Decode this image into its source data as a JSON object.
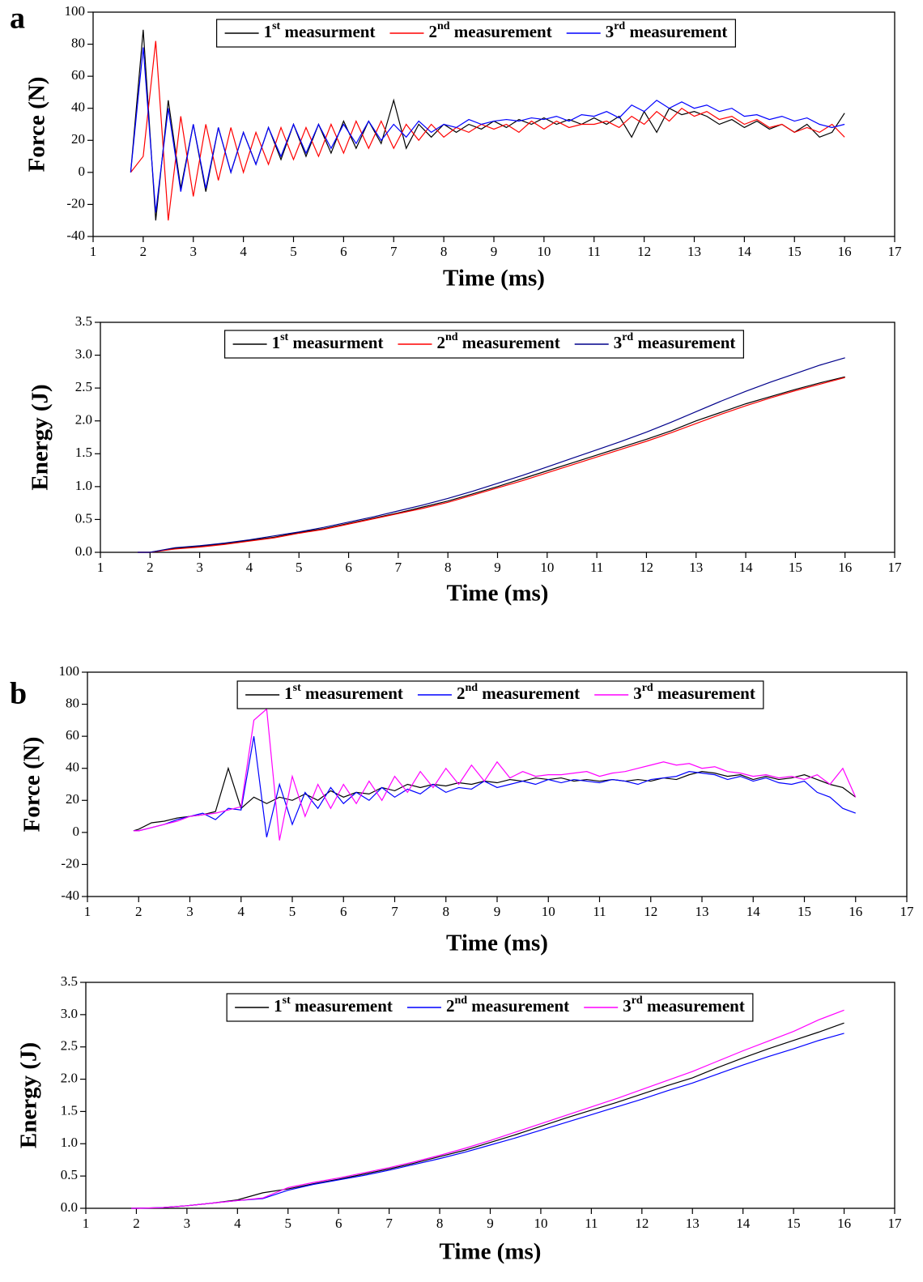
{
  "chart_data": [
    {
      "type": "line",
      "panel_label": "a",
      "x_label": "Time (ms)",
      "y_label": "Force (N)",
      "legend": "top",
      "grid": false,
      "xlim": [
        1,
        17
      ],
      "xticks": [
        1,
        2,
        3,
        4,
        5,
        6,
        7,
        8,
        9,
        10,
        11,
        12,
        13,
        14,
        15,
        16,
        17
      ],
      "ylim": [
        -40,
        100
      ],
      "yticks": [
        -40,
        -20,
        0,
        20,
        40,
        60,
        80,
        100
      ],
      "x": [
        1.75,
        2,
        2.25,
        2.5,
        2.75,
        3,
        3.25,
        3.5,
        3.75,
        4,
        4.25,
        4.5,
        4.75,
        5,
        5.25,
        5.5,
        5.75,
        6,
        6.25,
        6.5,
        6.75,
        7,
        7.25,
        7.5,
        7.75,
        8,
        8.25,
        8.5,
        8.75,
        9,
        9.25,
        9.5,
        9.75,
        10,
        10.25,
        10.5,
        10.75,
        11,
        11.25,
        11.5,
        11.75,
        12,
        12.25,
        12.5,
        12.75,
        13,
        13.25,
        13.5,
        13.75,
        14,
        14.25,
        14.5,
        14.75,
        15,
        15.25,
        15.5,
        15.75,
        16
      ],
      "series": [
        {
          "name": "1st measurment",
          "color": "#000000",
          "values": [
            0,
            89,
            -30,
            45,
            -10,
            30,
            -12,
            28,
            0,
            25,
            5,
            28,
            8,
            30,
            10,
            30,
            12,
            32,
            15,
            32,
            18,
            45,
            15,
            30,
            22,
            30,
            25,
            30,
            27,
            32,
            28,
            33,
            30,
            34,
            30,
            33,
            30,
            34,
            30,
            35,
            22,
            38,
            25,
            40,
            36,
            38,
            35,
            30,
            33,
            28,
            32,
            27,
            30,
            25,
            30,
            22,
            25,
            37
          ]
        },
        {
          "name": "2nd measurement",
          "color": "#ff0000",
          "values": [
            0,
            10,
            82,
            -30,
            35,
            -15,
            30,
            -5,
            28,
            0,
            25,
            5,
            28,
            8,
            28,
            10,
            30,
            12,
            32,
            15,
            32,
            15,
            30,
            20,
            30,
            22,
            28,
            25,
            30,
            27,
            30,
            25,
            32,
            27,
            32,
            28,
            30,
            30,
            32,
            28,
            35,
            30,
            38,
            32,
            40,
            35,
            38,
            33,
            35,
            30,
            33,
            28,
            30,
            25,
            28,
            25,
            30,
            22
          ]
        },
        {
          "name": "3rd measurement",
          "color": "#0000ff",
          "values": [
            0,
            78,
            -25,
            40,
            -12,
            30,
            -10,
            28,
            0,
            25,
            5,
            28,
            10,
            30,
            12,
            30,
            15,
            30,
            18,
            32,
            20,
            30,
            22,
            32,
            25,
            30,
            28,
            33,
            30,
            32,
            33,
            32,
            34,
            33,
            35,
            32,
            36,
            35,
            38,
            34,
            42,
            38,
            45,
            40,
            44,
            40,
            42,
            38,
            40,
            35,
            36,
            33,
            35,
            32,
            34,
            30,
            28,
            30
          ]
        }
      ]
    },
    {
      "type": "line",
      "x_label": "Time (ms)",
      "y_label": "Energy (J)",
      "legend": "top",
      "grid": false,
      "xlim": [
        1,
        17
      ],
      "xticks": [
        1,
        2,
        3,
        4,
        5,
        6,
        7,
        8,
        9,
        10,
        11,
        12,
        13,
        14,
        15,
        16,
        17
      ],
      "ylim": [
        0,
        3.5
      ],
      "yticks": [
        {
          "value": 0,
          "label": "0.0"
        },
        0.5,
        {
          "value": 1,
          "label": "1.0"
        },
        1.5,
        {
          "value": 2,
          "label": "2.0"
        },
        2.5,
        {
          "value": 3,
          "label": "3.0"
        },
        3.5
      ],
      "x": [
        1.75,
        2,
        2.5,
        3,
        3.5,
        4,
        4.5,
        5,
        5.5,
        6,
        6.5,
        7,
        7.5,
        8,
        8.5,
        9,
        9.5,
        10,
        10.5,
        11,
        11.5,
        12,
        12.5,
        13,
        13.5,
        14,
        14.5,
        15,
        15.5,
        16
      ],
      "series": [
        {
          "name": "1st measurment",
          "color": "#000000",
          "values": [
            0,
            0,
            0.06,
            0.09,
            0.13,
            0.18,
            0.23,
            0.3,
            0.36,
            0.44,
            0.52,
            0.6,
            0.69,
            0.78,
            0.89,
            1.0,
            1.12,
            1.24,
            1.36,
            1.48,
            1.6,
            1.72,
            1.85,
            2.0,
            2.13,
            2.26,
            2.37,
            2.48,
            2.58,
            2.67
          ]
        },
        {
          "name": "2nd measurement",
          "color": "#ff0000",
          "values": [
            0,
            0,
            0.05,
            0.08,
            0.12,
            0.17,
            0.22,
            0.29,
            0.35,
            0.43,
            0.51,
            0.59,
            0.67,
            0.76,
            0.87,
            0.98,
            1.09,
            1.21,
            1.33,
            1.45,
            1.57,
            1.69,
            1.82,
            1.96,
            2.1,
            2.23,
            2.35,
            2.46,
            2.56,
            2.66
          ]
        },
        {
          "name": "3rd measurement",
          "color": "#00008b",
          "values": [
            0,
            0,
            0.07,
            0.1,
            0.14,
            0.19,
            0.25,
            0.31,
            0.38,
            0.46,
            0.54,
            0.63,
            0.72,
            0.82,
            0.93,
            1.05,
            1.17,
            1.3,
            1.43,
            1.56,
            1.69,
            1.83,
            1.98,
            2.14,
            2.3,
            2.45,
            2.59,
            2.72,
            2.85,
            2.96
          ]
        }
      ]
    },
    {
      "type": "line",
      "panel_label": "b",
      "x_label": "Time (ms)",
      "y_label": "Force (N)",
      "legend": "top",
      "grid": false,
      "xlim": [
        1,
        17
      ],
      "xticks": [
        1,
        2,
        3,
        4,
        5,
        6,
        7,
        8,
        9,
        10,
        11,
        12,
        13,
        14,
        15,
        16,
        17
      ],
      "ylim": [
        -40,
        100
      ],
      "yticks": [
        -40,
        -20,
        0,
        20,
        40,
        60,
        80,
        100
      ],
      "x": [
        1.9,
        2,
        2.25,
        2.5,
        2.75,
        3,
        3.25,
        3.5,
        3.75,
        4,
        4.25,
        4.5,
        4.75,
        5,
        5.25,
        5.5,
        5.75,
        6,
        6.25,
        6.5,
        6.75,
        7,
        7.25,
        7.5,
        7.75,
        8,
        8.25,
        8.5,
        8.75,
        9,
        9.25,
        9.5,
        9.75,
        10,
        10.25,
        10.5,
        10.75,
        11,
        11.25,
        11.5,
        11.75,
        12,
        12.25,
        12.5,
        12.75,
        13,
        13.25,
        13.5,
        13.75,
        14,
        14.25,
        14.5,
        14.75,
        15,
        15.25,
        15.5,
        15.75,
        16
      ],
      "series": [
        {
          "name": "1st measurement",
          "color": "#000000",
          "values": [
            1,
            2,
            6,
            7,
            9,
            10,
            11,
            13,
            40,
            15,
            22,
            18,
            22,
            20,
            24,
            20,
            26,
            22,
            25,
            24,
            28,
            26,
            30,
            28,
            30,
            29,
            31,
            30,
            32,
            31,
            33,
            32,
            34,
            33,
            34,
            32,
            33,
            32,
            33,
            32,
            33,
            32,
            34,
            33,
            36,
            38,
            37,
            35,
            36,
            33,
            35,
            33,
            34,
            36,
            33,
            30,
            28,
            22
          ]
        },
        {
          "name": "2nd measurement",
          "color": "#0000ff",
          "values": [
            1,
            1,
            3,
            5,
            8,
            10,
            12,
            8,
            15,
            14,
            60,
            -3,
            30,
            5,
            25,
            15,
            28,
            18,
            25,
            20,
            28,
            22,
            27,
            24,
            30,
            25,
            28,
            27,
            32,
            28,
            30,
            32,
            30,
            33,
            31,
            33,
            32,
            31,
            33,
            32,
            30,
            33,
            34,
            35,
            38,
            37,
            36,
            33,
            35,
            32,
            34,
            31,
            30,
            32,
            25,
            22,
            15,
            12
          ]
        },
        {
          "name": "3rd measurement",
          "color": "#ff00ff",
          "values": [
            1,
            1,
            3,
            5,
            7,
            10,
            11,
            12,
            14,
            16,
            70,
            77,
            -5,
            35,
            10,
            30,
            15,
            30,
            18,
            32,
            20,
            35,
            25,
            38,
            28,
            40,
            30,
            42,
            32,
            44,
            34,
            38,
            35,
            36,
            36,
            37,
            38,
            35,
            37,
            38,
            40,
            42,
            44,
            42,
            43,
            40,
            41,
            38,
            37,
            35,
            36,
            34,
            35,
            33,
            36,
            30,
            40,
            22
          ]
        }
      ]
    },
    {
      "type": "line",
      "x_label": "Time (ms)",
      "y_label": "Energy (J)",
      "legend": "top",
      "grid": false,
      "xlim": [
        1,
        17
      ],
      "xticks": [
        1,
        2,
        3,
        4,
        5,
        6,
        7,
        8,
        9,
        10,
        11,
        12,
        13,
        14,
        15,
        16,
        17
      ],
      "ylim": [
        0,
        3.5
      ],
      "yticks": [
        {
          "value": 0,
          "label": "0.0"
        },
        0.5,
        {
          "value": 1,
          "label": "1.0"
        },
        1.5,
        {
          "value": 2,
          "label": "2.0"
        },
        2.5,
        {
          "value": 3,
          "label": "3.0"
        },
        3.5
      ],
      "x": [
        1.9,
        2,
        2.5,
        3,
        3.5,
        4,
        4.5,
        5,
        5.5,
        6,
        6.5,
        7,
        7.5,
        8,
        8.5,
        9,
        9.5,
        10,
        10.5,
        11,
        11.5,
        12,
        12.5,
        13,
        13.5,
        14,
        14.5,
        15,
        15.5,
        16
      ],
      "series": [
        {
          "name": "1st measurement",
          "color": "#000000",
          "values": [
            0,
            0,
            0.01,
            0.04,
            0.08,
            0.13,
            0.24,
            0.3,
            0.38,
            0.45,
            0.53,
            0.61,
            0.7,
            0.8,
            0.9,
            1.02,
            1.14,
            1.27,
            1.4,
            1.52,
            1.64,
            1.77,
            1.9,
            2.02,
            2.18,
            2.33,
            2.47,
            2.6,
            2.73,
            2.87
          ]
        },
        {
          "name": "2nd measurement",
          "color": "#0000ff",
          "values": [
            0,
            0,
            0.01,
            0.04,
            0.08,
            0.12,
            0.15,
            0.28,
            0.37,
            0.44,
            0.51,
            0.59,
            0.68,
            0.77,
            0.87,
            0.98,
            1.09,
            1.21,
            1.33,
            1.45,
            1.57,
            1.69,
            1.82,
            1.94,
            2.08,
            2.22,
            2.35,
            2.47,
            2.6,
            2.71
          ]
        },
        {
          "name": "3rd measurement",
          "color": "#ff00ff",
          "values": [
            0,
            0,
            0.01,
            0.04,
            0.08,
            0.12,
            0.16,
            0.32,
            0.4,
            0.47,
            0.55,
            0.63,
            0.72,
            0.82,
            0.93,
            1.05,
            1.18,
            1.31,
            1.44,
            1.57,
            1.7,
            1.84,
            1.98,
            2.12,
            2.28,
            2.44,
            2.59,
            2.74,
            2.92,
            3.07
          ]
        }
      ]
    }
  ]
}
